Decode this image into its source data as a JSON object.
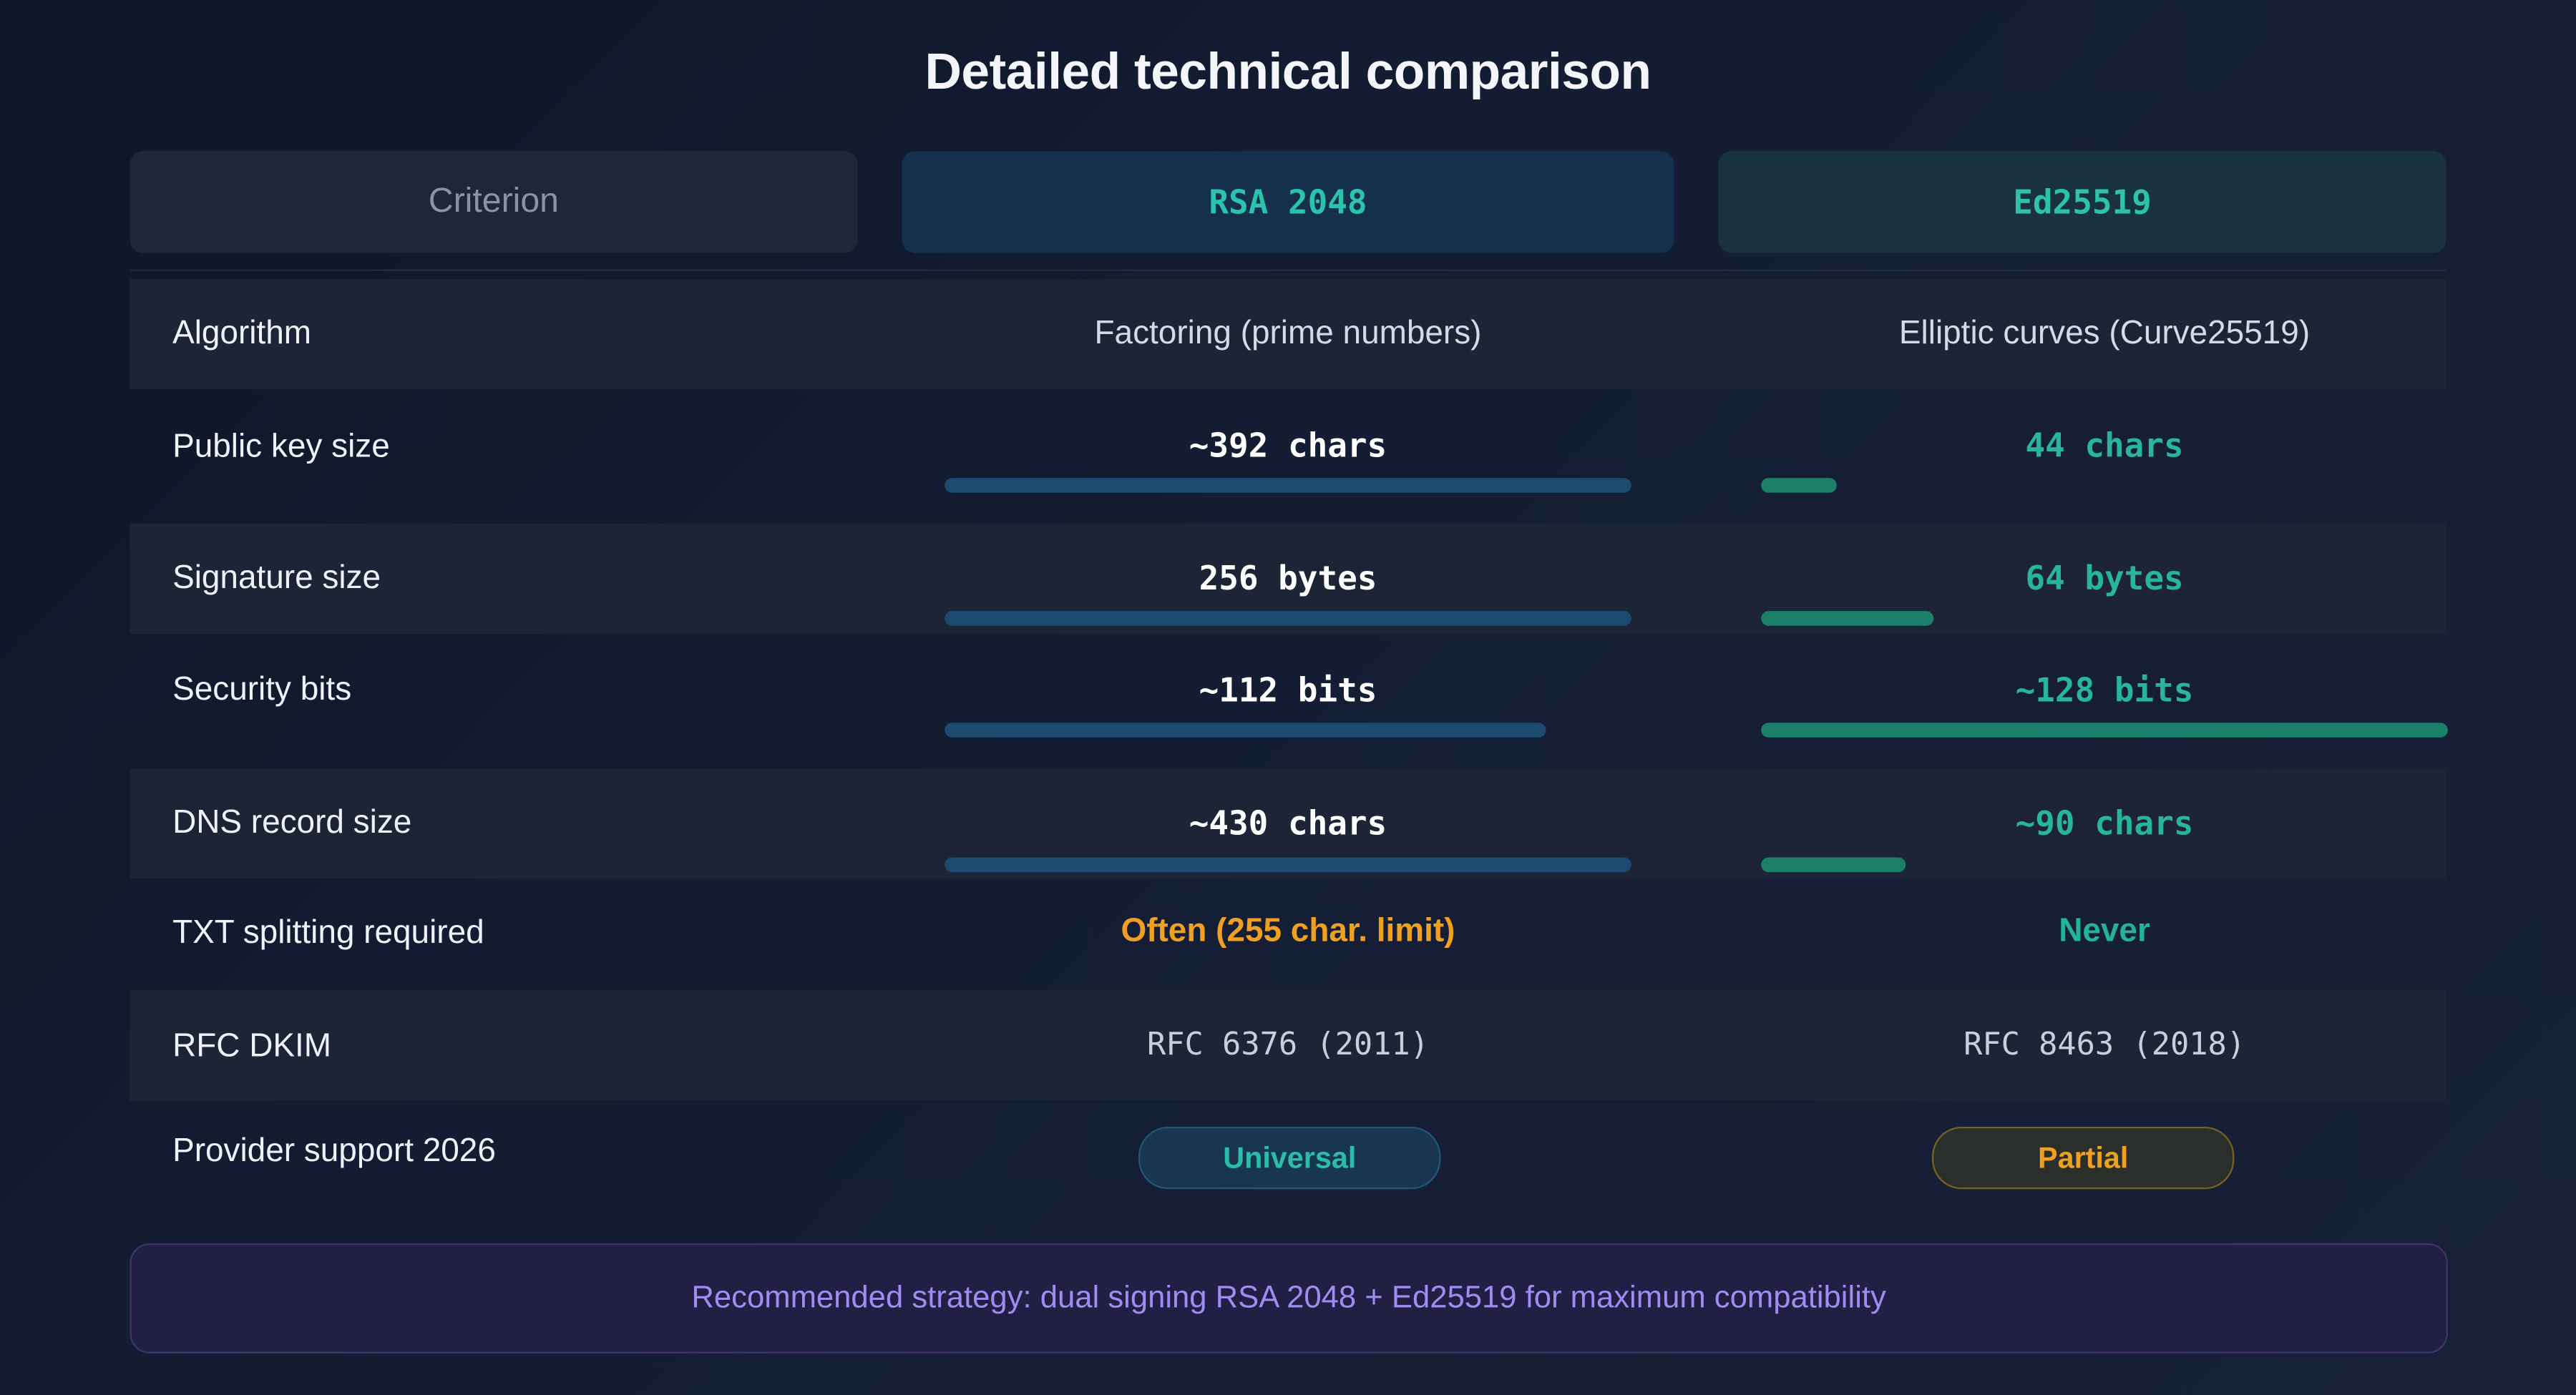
{
  "title": "Detailed technical comparison",
  "columns": {
    "criterion": "Criterion",
    "rsa": "RSA 2048",
    "ed": "Ed25519"
  },
  "rows": [
    {
      "label": "Algorithm",
      "rsa": "Factoring (prime numbers)",
      "ed": "Elliptic curves (Curve25519)"
    },
    {
      "label": "Public key size",
      "rsa": "~392 chars",
      "ed": "44 chars",
      "rsa_bar_fraction": 1.0,
      "ed_bar_fraction": 0.11
    },
    {
      "label": "Signature size",
      "rsa": "256 bytes",
      "ed": "64 bytes",
      "rsa_bar_fraction": 1.0,
      "ed_bar_fraction": 0.25
    },
    {
      "label": "Security bits",
      "rsa": "~112 bits",
      "ed": "~128 bits",
      "rsa_bar_fraction": 0.875,
      "ed_bar_fraction": 1.0
    },
    {
      "label": "DNS record size",
      "rsa": "~430 chars",
      "ed": "~90 chars",
      "rsa_bar_fraction": 1.0,
      "ed_bar_fraction": 0.21
    },
    {
      "label": "TXT splitting required",
      "rsa": "Often (255 char. limit)",
      "ed": "Never"
    },
    {
      "label": "RFC DKIM",
      "rsa": "RFC 6376 (2011)",
      "ed": "RFC 8463 (2018)"
    },
    {
      "label": "Provider support 2026",
      "rsa": "Universal",
      "ed": "Partial"
    }
  ],
  "recommendation": "Recommended strategy: dual signing RSA 2048 + Ed25519 for maximum compatibility",
  "colors": {
    "background": "#141d33",
    "rsa_bar": "#1c4a70",
    "ed_bar": "#1b7f6a",
    "accent_green": "#2cc3ad",
    "warning_orange": "#f0a020",
    "recommendation_text": "#a08cf0"
  }
}
